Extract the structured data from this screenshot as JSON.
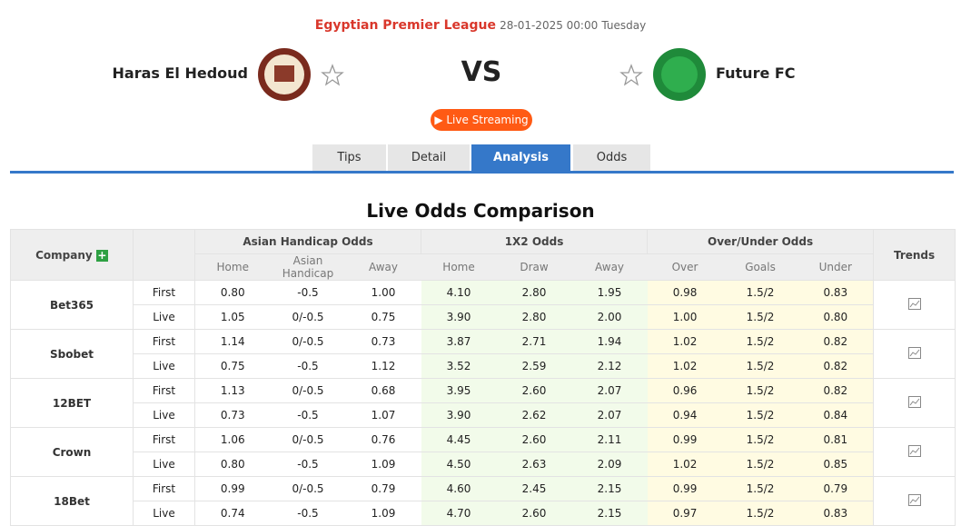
{
  "header": {
    "league": "Egyptian Premier League",
    "datetime": "28-01-2025 00:00",
    "weekday": "Tuesday",
    "home_team": "Haras El Hedoud",
    "vs": "VS",
    "away_team": "Future FC",
    "live_button": "Live Streaming"
  },
  "tabs": {
    "items": [
      "Tips",
      "Detail",
      "Analysis",
      "Odds"
    ],
    "active": "Analysis"
  },
  "section_title": "Live Odds Comparison",
  "table": {
    "headers": {
      "company": "Company",
      "asian": "Asian Handicap Odds",
      "x12": "1X2 Odds",
      "ou": "Over/Under Odds",
      "trends": "Trends"
    },
    "subheaders": [
      "Home",
      "Asian Handicap",
      "Away",
      "Home",
      "Draw",
      "Away",
      "Over",
      "Goals",
      "Under"
    ],
    "companies": [
      {
        "name": "Bet365",
        "rows": [
          {
            "label": "First",
            "cells": [
              "0.80",
              "-0.5",
              "1.00",
              "4.10",
              "2.80",
              "1.95",
              "0.98",
              "1.5/2",
              "0.83"
            ]
          },
          {
            "label": "Live",
            "cells": [
              "1.05",
              "0/-0.5",
              "0.75",
              "3.90",
              "2.80",
              "2.00",
              "1.00",
              "1.5/2",
              "0.80"
            ]
          }
        ]
      },
      {
        "name": "Sbobet",
        "rows": [
          {
            "label": "First",
            "cells": [
              "1.14",
              "0/-0.5",
              "0.73",
              "3.87",
              "2.71",
              "1.94",
              "1.02",
              "1.5/2",
              "0.82"
            ]
          },
          {
            "label": "Live",
            "cells": [
              "0.75",
              "-0.5",
              "1.12",
              "3.52",
              "2.59",
              "2.12",
              "1.02",
              "1.5/2",
              "0.82"
            ]
          }
        ]
      },
      {
        "name": "12BET",
        "rows": [
          {
            "label": "First",
            "cells": [
              "1.13",
              "0/-0.5",
              "0.68",
              "3.95",
              "2.60",
              "2.07",
              "0.96",
              "1.5/2",
              "0.82"
            ]
          },
          {
            "label": "Live",
            "cells": [
              "0.73",
              "-0.5",
              "1.07",
              "3.90",
              "2.62",
              "2.07",
              "0.94",
              "1.5/2",
              "0.84"
            ]
          }
        ]
      },
      {
        "name": "Crown",
        "rows": [
          {
            "label": "First",
            "cells": [
              "1.06",
              "0/-0.5",
              "0.76",
              "4.45",
              "2.60",
              "2.11",
              "0.99",
              "1.5/2",
              "0.81"
            ]
          },
          {
            "label": "Live",
            "cells": [
              "0.80",
              "-0.5",
              "1.09",
              "4.50",
              "2.63",
              "2.09",
              "1.02",
              "1.5/2",
              "0.85"
            ]
          }
        ]
      },
      {
        "name": "18Bet",
        "rows": [
          {
            "label": "First",
            "cells": [
              "0.99",
              "0/-0.5",
              "0.79",
              "4.60",
              "2.45",
              "2.15",
              "0.99",
              "1.5/2",
              "0.79"
            ]
          },
          {
            "label": "Live",
            "cells": [
              "0.74",
              "-0.5",
              "1.09",
              "4.70",
              "2.60",
              "2.15",
              "0.97",
              "1.5/2",
              "0.83"
            ]
          }
        ]
      }
    ]
  }
}
